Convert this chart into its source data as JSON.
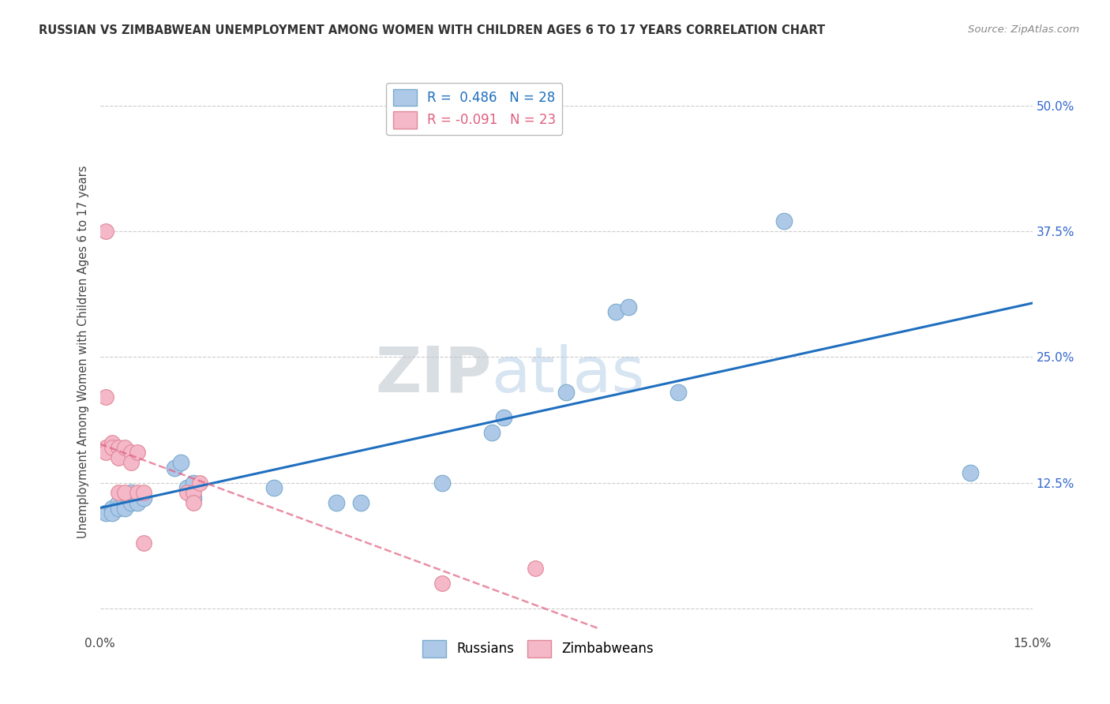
{
  "title": "RUSSIAN VS ZIMBABWEAN UNEMPLOYMENT AMONG WOMEN WITH CHILDREN AGES 6 TO 17 YEARS CORRELATION CHART",
  "source": "Source: ZipAtlas.com",
  "ylabel": "Unemployment Among Women with Children Ages 6 to 17 years",
  "xlim": [
    0.0,
    0.15
  ],
  "ylim": [
    -0.025,
    0.535
  ],
  "xticks": [
    0.0,
    0.025,
    0.05,
    0.075,
    0.1,
    0.125,
    0.15
  ],
  "ytick_positions": [
    0.0,
    0.125,
    0.25,
    0.375,
    0.5
  ],
  "yticklabels": [
    "",
    "12.5%",
    "25.0%",
    "37.5%",
    "50.0%"
  ],
  "russian_R": "0.486",
  "russian_N": "28",
  "zimbabwean_R": "-0.091",
  "zimbabwean_N": "23",
  "russian_color": "#aec8e8",
  "russian_edge": "#7aabcc",
  "zimbabwean_color": "#f4b8c8",
  "zimbabwean_edge": "#e08898",
  "russian_line_color": "#1f6fbf",
  "zimbabwean_line_color": "#e06080",
  "watermark_zip": "ZIP",
  "watermark_atlas": "atlas",
  "russian_x": [
    0.001,
    0.002,
    0.002,
    0.003,
    0.003,
    0.004,
    0.004,
    0.005,
    0.005,
    0.006,
    0.007,
    0.012,
    0.013,
    0.014,
    0.015,
    0.015,
    0.028,
    0.038,
    0.042,
    0.055,
    0.063,
    0.065,
    0.075,
    0.083,
    0.085,
    0.093,
    0.11,
    0.14
  ],
  "russian_y": [
    0.095,
    0.1,
    0.095,
    0.105,
    0.1,
    0.105,
    0.1,
    0.115,
    0.105,
    0.105,
    0.11,
    0.14,
    0.145,
    0.12,
    0.125,
    0.11,
    0.12,
    0.105,
    0.105,
    0.125,
    0.175,
    0.19,
    0.215,
    0.295,
    0.3,
    0.215,
    0.385,
    0.135
  ],
  "zimbabwean_x": [
    0.001,
    0.001,
    0.001,
    0.001,
    0.002,
    0.002,
    0.003,
    0.003,
    0.003,
    0.004,
    0.004,
    0.005,
    0.005,
    0.006,
    0.006,
    0.007,
    0.007,
    0.014,
    0.015,
    0.015,
    0.016,
    0.055,
    0.07
  ],
  "zimbabwean_y": [
    0.375,
    0.21,
    0.16,
    0.155,
    0.165,
    0.16,
    0.16,
    0.15,
    0.115,
    0.16,
    0.115,
    0.155,
    0.145,
    0.155,
    0.115,
    0.115,
    0.065,
    0.115,
    0.115,
    0.105,
    0.125,
    0.025,
    0.04
  ],
  "grid_color": "#cccccc",
  "background_color": "#ffffff"
}
